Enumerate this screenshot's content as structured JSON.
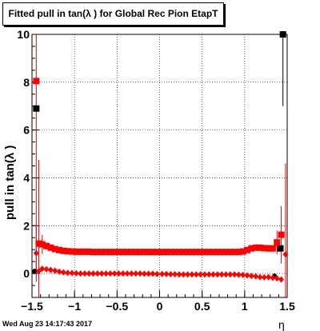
{
  "title": "Fitted pull in tan(λ ) for Global Rec Pion EtapT",
  "footer": "Wed Aug 23 14:17:43 2017",
  "colors": {
    "mean": "#ff0000",
    "sigma": "#ff0000",
    "black": "#000000",
    "grid": "#000000"
  },
  "chart_data": {
    "type": "scatter",
    "title": "Fitted pull in tan(λ ) for Global Rec Pion EtapT",
    "xlabel": "η",
    "ylabel": "pull in tan(λ )",
    "xlim": [
      -1.5,
      1.5
    ],
    "ylim": [
      -1,
      10
    ],
    "grid": true,
    "x_ticks": [
      "−1.5",
      "−1",
      "−0.5",
      "0",
      "0.5",
      "1",
      "1.5"
    ],
    "x_tick_values": [
      -1.5,
      -1,
      -0.5,
      0,
      0.5,
      1,
      1.5
    ],
    "y_ticks": [
      "0",
      "2",
      "4",
      "6",
      "8",
      "10"
    ],
    "y_tick_values": [
      0,
      2,
      4,
      6,
      8,
      10
    ],
    "series": [
      {
        "marker": "square",
        "color": "#000000",
        "x": [
          -1.45,
          1.42,
          1.45
        ],
        "y": [
          6.9,
          1.05,
          10.0
        ],
        "err": [
          0,
          0,
          3.0
        ]
      },
      {
        "marker": "square",
        "color": "#ff0000",
        "x": [
          -1.45,
          -1.42,
          -1.38,
          -1.33,
          -1.28,
          -1.23,
          -1.18,
          -1.13,
          -1.08,
          -1.03,
          -0.98,
          -0.93,
          -0.88,
          -0.83,
          -0.78,
          -0.73,
          -0.68,
          -0.63,
          -0.58,
          -0.53,
          -0.48,
          -0.43,
          -0.38,
          -0.33,
          -0.28,
          -0.23,
          -0.18,
          -0.13,
          -0.08,
          -0.03,
          0.03,
          0.08,
          0.13,
          0.18,
          0.23,
          0.28,
          0.33,
          0.38,
          0.43,
          0.48,
          0.53,
          0.58,
          0.63,
          0.68,
          0.73,
          0.78,
          0.83,
          0.88,
          0.93,
          0.98,
          1.03,
          1.08,
          1.13,
          1.18,
          1.23,
          1.28,
          1.33,
          1.38,
          1.43
        ],
        "y": [
          8.05,
          1.25,
          1.22,
          1.15,
          1.08,
          1.02,
          0.98,
          0.95,
          0.93,
          0.92,
          0.91,
          0.91,
          0.91,
          0.91,
          0.9,
          0.9,
          0.9,
          0.9,
          0.9,
          0.9,
          0.9,
          0.9,
          0.9,
          0.9,
          0.9,
          0.9,
          0.9,
          0.9,
          0.9,
          0.9,
          0.9,
          0.9,
          0.9,
          0.9,
          0.9,
          0.9,
          0.9,
          0.9,
          0.9,
          0.9,
          0.9,
          0.9,
          0.9,
          0.9,
          0.9,
          0.9,
          0.9,
          0.9,
          0.9,
          0.92,
          0.98,
          1.05,
          1.08,
          1.08,
          1.06,
          1.05,
          1.05,
          1.3,
          1.62
        ],
        "err": [
          7.9,
          3.5,
          0.4,
          0.15,
          0.05,
          0.03,
          0.03,
          0.03,
          0.03,
          0.03,
          0.03,
          0.03,
          0.03,
          0.03,
          0.03,
          0.03,
          0.03,
          0.03,
          0.03,
          0.03,
          0.03,
          0.03,
          0.03,
          0.03,
          0.03,
          0.03,
          0.03,
          0.03,
          0.03,
          0.03,
          0.03,
          0.03,
          0.03,
          0.03,
          0.03,
          0.03,
          0.03,
          0.03,
          0.03,
          0.03,
          0.03,
          0.03,
          0.03,
          0.03,
          0.03,
          0.03,
          0.03,
          0.03,
          0.03,
          0.03,
          0.03,
          0.03,
          0.03,
          0.03,
          0.03,
          0.05,
          0.1,
          0.5,
          1.2
        ]
      },
      {
        "marker": "circle",
        "color": "#000000",
        "x": [
          -1.47,
          1.35
        ],
        "y": [
          0.1,
          -0.1
        ],
        "err": [
          0,
          0
        ]
      },
      {
        "marker": "diamond",
        "color": "#ff0000",
        "x": [
          -1.45,
          -1.42,
          -1.38,
          -1.33,
          -1.28,
          -1.23,
          -1.18,
          -1.13,
          -1.08,
          -1.03,
          -0.98,
          -0.93,
          -0.88,
          -0.83,
          -0.78,
          -0.73,
          -0.68,
          -0.63,
          -0.58,
          -0.53,
          -0.48,
          -0.43,
          -0.38,
          -0.33,
          -0.28,
          -0.23,
          -0.18,
          -0.13,
          -0.08,
          -0.03,
          0.03,
          0.08,
          0.13,
          0.18,
          0.23,
          0.28,
          0.33,
          0.38,
          0.43,
          0.48,
          0.53,
          0.58,
          0.63,
          0.68,
          0.73,
          0.78,
          0.83,
          0.88,
          0.93,
          0.98,
          1.03,
          1.08,
          1.13,
          1.18,
          1.23,
          1.28,
          1.33,
          1.38,
          1.43,
          1.48
        ],
        "y": [
          0.85,
          0.1,
          0.2,
          0.18,
          0.15,
          0.12,
          0.08,
          0.05,
          0.03,
          0.02,
          0.01,
          0.0,
          0.0,
          0.0,
          0.0,
          0.0,
          0.0,
          0.0,
          0.0,
          0.0,
          0.0,
          0.0,
          0.0,
          0.0,
          0.0,
          0.0,
          -0.01,
          -0.01,
          -0.01,
          -0.02,
          -0.02,
          -0.02,
          -0.03,
          -0.03,
          -0.04,
          -0.04,
          -0.04,
          -0.04,
          -0.04,
          -0.04,
          -0.04,
          -0.04,
          -0.04,
          -0.04,
          -0.04,
          -0.04,
          -0.04,
          -0.04,
          -0.05,
          -0.06,
          -0.08,
          -0.1,
          -0.12,
          -0.15,
          -0.16,
          -0.15,
          -0.18,
          -0.2,
          -0.25,
          0.8
        ],
        "err": [
          1.2,
          0.2,
          0.1,
          0.05,
          0.03,
          0.02,
          0.02,
          0.02,
          0.02,
          0.02,
          0.02,
          0.02,
          0.02,
          0.02,
          0.02,
          0.02,
          0.02,
          0.02,
          0.02,
          0.02,
          0.02,
          0.02,
          0.02,
          0.02,
          0.02,
          0.02,
          0.02,
          0.02,
          0.02,
          0.02,
          0.02,
          0.02,
          0.02,
          0.02,
          0.02,
          0.02,
          0.02,
          0.02,
          0.02,
          0.02,
          0.02,
          0.02,
          0.02,
          0.02,
          0.02,
          0.02,
          0.02,
          0.02,
          0.02,
          0.02,
          0.02,
          0.02,
          0.02,
          0.03,
          0.03,
          0.03,
          0.04,
          0.06,
          0.1,
          3.8
        ]
      }
    ]
  }
}
